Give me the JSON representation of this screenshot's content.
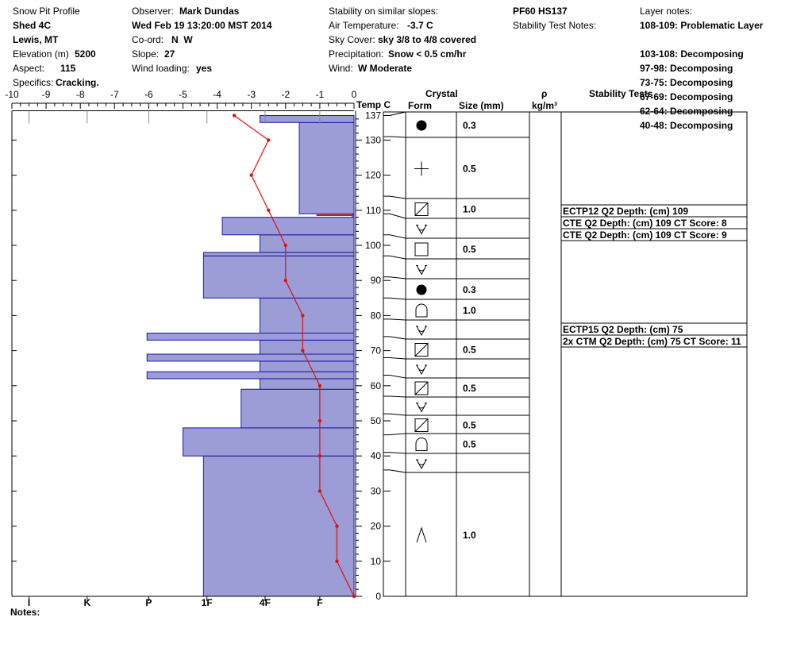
{
  "header": {
    "profile_title": "Snow Pit Profile",
    "site": "Shed 4C",
    "location": "Lewis, MT",
    "elevation_label": "Elevation (m)",
    "elevation": "5200",
    "aspect_label": "Aspect:",
    "aspect": "115",
    "specifics_label": "Specifics:",
    "specifics": "Cracking.",
    "observer_label": "Observer:",
    "observer": "Mark Dundas",
    "datetime": "Wed Feb 19 13:20:00 MST 2014",
    "coord_label": "Co-ord:",
    "coord": "N  W",
    "slope_label": "Slope:",
    "slope": "27",
    "wind_loading_label": "Wind loading:",
    "wind_loading": "yes",
    "stability_similar_label": "Stability on similar slopes:",
    "air_temp_label": "Air Temperature:",
    "air_temp": "-3.7 C",
    "sky_cover_label": "Sky Cover:",
    "sky_cover": "sky 3/8 to 4/8 covered",
    "precip_label": "Precipitation:",
    "precip": "Snow < 0.5 cm/hr",
    "wind_label": "Wind:",
    "wind": "W Moderate",
    "pf_hs": "PF60 HS137",
    "stability_test_notes_label": "Stability Test Notes:",
    "layer_notes_label": "Layer notes:",
    "layer_notes": [
      "108-109: Problematic Layer",
      "103-108: Decomposing",
      "97-98: Decomposing",
      "73-75: Decomposing",
      "67-69: Decomposing",
      "62-64: Decomposing",
      "40-48: Decomposing"
    ],
    "notes_label": "Notes:"
  },
  "columns": {
    "temp": "Temp C",
    "crystal": "Crystal",
    "form": "Form",
    "size": "Size (mm)",
    "rho": "ρ",
    "density_unit": "kg/m³",
    "stability": "Stability Tests"
  },
  "colors": {
    "hardness_fill": "#9c9cd6",
    "hardness_stroke": "#1a1aa0",
    "temp_line": "#dd1111",
    "axis": "#000000"
  },
  "chart_data": {
    "type": "snow_profile",
    "temperature_axis": {
      "label": "Temp C",
      "range": [
        -10,
        0
      ],
      "ticks": [
        -10,
        -9,
        -8,
        -7,
        -6,
        -5,
        -4,
        -3,
        -2,
        -1,
        0
      ]
    },
    "depth_axis": {
      "range": [
        0,
        137
      ],
      "ticks": [
        0,
        10,
        20,
        30,
        40,
        50,
        60,
        70,
        80,
        90,
        100,
        110,
        120,
        130,
        137
      ]
    },
    "hardness_scale": {
      "labels": [
        "I",
        "K",
        "P",
        "1F",
        "4F",
        "F"
      ],
      "temp_positions": [
        -9.5,
        -7.8,
        -6,
        -4.3,
        -2.6,
        -1
      ]
    },
    "hardness_layers": [
      {
        "bottom": 0,
        "top": 40,
        "temp_extent": -4.4
      },
      {
        "bottom": 40,
        "top": 48,
        "temp_extent": -5
      },
      {
        "bottom": 48,
        "top": 59,
        "temp_extent": -3.3
      },
      {
        "bottom": 59,
        "top": 62,
        "temp_extent": -2.75
      },
      {
        "bottom": 62,
        "top": 64,
        "temp_extent": -6.05
      },
      {
        "bottom": 64,
        "top": 67,
        "temp_extent": -2.75
      },
      {
        "bottom": 67,
        "top": 69,
        "temp_extent": -6.05
      },
      {
        "bottom": 69,
        "top": 73,
        "temp_extent": -2.75
      },
      {
        "bottom": 73,
        "top": 75,
        "temp_extent": -6.05
      },
      {
        "bottom": 75,
        "top": 85,
        "temp_extent": -2.75
      },
      {
        "bottom": 85,
        "top": 97,
        "temp_extent": -4.4
      },
      {
        "bottom": 97,
        "top": 98,
        "temp_extent": -4.4
      },
      {
        "bottom": 98,
        "top": 103,
        "temp_extent": -2.75
      },
      {
        "bottom": 103,
        "top": 108,
        "temp_extent": -3.85
      },
      {
        "bottom": 108,
        "top": 109,
        "temp_extent": -0.05
      },
      {
        "bottom": 109,
        "top": 135,
        "temp_extent": -1.6
      },
      {
        "bottom": 135,
        "top": 137,
        "temp_extent": -2.75
      }
    ],
    "temperature_profile": [
      {
        "depth": 0,
        "temp": 0
      },
      {
        "depth": 10,
        "temp": -0.5
      },
      {
        "depth": 20,
        "temp": -0.5
      },
      {
        "depth": 30,
        "temp": -1
      },
      {
        "depth": 40,
        "temp": -1
      },
      {
        "depth": 50,
        "temp": -1
      },
      {
        "depth": 60,
        "temp": -1
      },
      {
        "depth": 70,
        "temp": -1.5
      },
      {
        "depth": 80,
        "temp": -1.5
      },
      {
        "depth": 90,
        "temp": -2
      },
      {
        "depth": 100,
        "temp": -2
      },
      {
        "depth": 110,
        "temp": -2.5
      },
      {
        "depth": 120,
        "temp": -3
      },
      {
        "depth": 130,
        "temp": -2.5
      },
      {
        "depth": 137,
        "temp": -3.5
      }
    ],
    "crystal_layers": [
      {
        "top": 137,
        "bottom": 131,
        "form": "rounded",
        "size": "0.3"
      },
      {
        "top": 131,
        "bottom": 114,
        "form": "precipitation",
        "size": "0.5"
      },
      {
        "top": 114,
        "bottom": 109,
        "form": "faceted-rounded",
        "size": "1.0"
      },
      {
        "top": 109,
        "bottom": 103,
        "form": "decomposing",
        "size": ""
      },
      {
        "top": 103,
        "bottom": 97,
        "form": "faceted",
        "size": "0.5"
      },
      {
        "top": 97,
        "bottom": 91,
        "form": "decomposing",
        "size": ""
      },
      {
        "top": 91,
        "bottom": 85,
        "form": "rounded",
        "size": "0.3"
      },
      {
        "top": 85,
        "bottom": 79,
        "form": "depth-hoar",
        "size": "1.0"
      },
      {
        "top": 79,
        "bottom": 74,
        "form": "decomposing",
        "size": ""
      },
      {
        "top": 74,
        "bottom": 68,
        "form": "faceted-rounded",
        "size": "0.5"
      },
      {
        "top": 68,
        "bottom": 63,
        "form": "decomposing",
        "size": ""
      },
      {
        "top": 63,
        "bottom": 57,
        "form": "faceted-rounded",
        "size": "0.5"
      },
      {
        "top": 57,
        "bottom": 52,
        "form": "decomposing",
        "size": ""
      },
      {
        "top": 52,
        "bottom": 46,
        "form": "faceted-rounded",
        "size": "0.5"
      },
      {
        "top": 46,
        "bottom": 41,
        "form": "depth-hoar",
        "size": "0.5"
      },
      {
        "top": 41,
        "bottom": 36,
        "form": "decomposing",
        "size": ""
      },
      {
        "top": 36,
        "bottom": 0,
        "form": "crust",
        "size": "1.0"
      }
    ],
    "stability_tests": [
      {
        "depth": 109,
        "text": "ECTP12 Q2 Depth: (cm) 109"
      },
      {
        "depth": 109,
        "text": "CTE Q2 Depth: (cm) 109 CT Score: 8"
      },
      {
        "depth": 109,
        "text": "CTE Q2 Depth: (cm) 109 CT Score: 9"
      },
      {
        "depth": 75,
        "text": "ECTP15 Q2 Depth: (cm) 75"
      },
      {
        "depth": 75,
        "text": "2x CTM Q2 Depth: (cm) 75 CT Score: 11"
      }
    ]
  }
}
